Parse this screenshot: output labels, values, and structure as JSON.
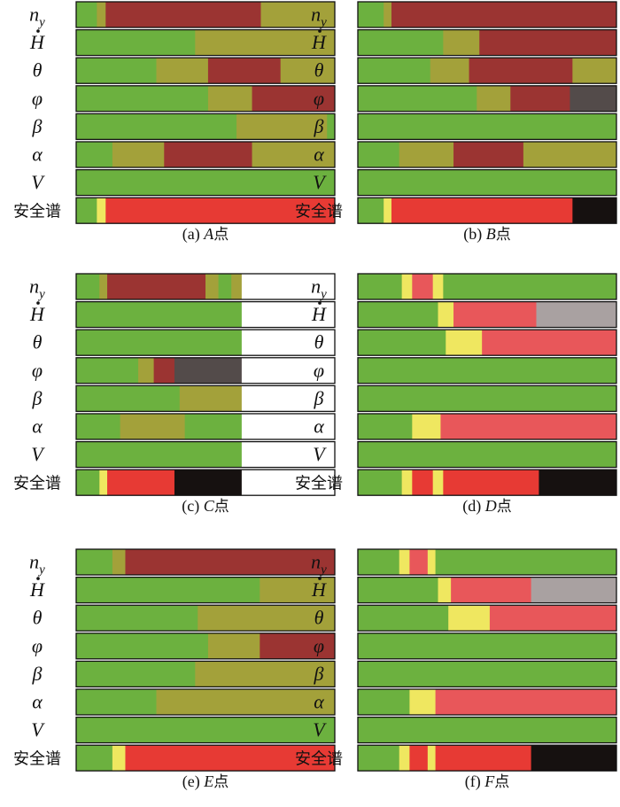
{
  "colors": {
    "G": "#6cb13f",
    "O": "#a3a13a",
    "R": "#9b3432",
    "K": "#534b4a",
    "Y": "#efe760",
    "P": "#e8575a",
    "S": "#a9a1a1",
    "E": "#e73a34",
    "B": "#161110",
    "W": "#ffffff",
    "line": "#111111"
  },
  "chart_data": {
    "type": "stacked-segment-bars",
    "row_labels": [
      {
        "main": "n",
        "sub": "y"
      },
      {
        "main": "H",
        "dot": true
      },
      {
        "main": "θ"
      },
      {
        "main": "φ"
      },
      {
        "main": "β"
      },
      {
        "main": "α"
      },
      {
        "main": "V"
      },
      {
        "main": "安全谱",
        "cn": true
      }
    ],
    "panels": [
      {
        "caption_prefix": "(a)",
        "caption_letter": "A",
        "caption_suffix": "点",
        "rows": [
          [
            [
              "G",
              0.08
            ],
            [
              "O",
              0.034
            ],
            [
              "R",
              0.6
            ],
            [
              "O",
              0.286
            ]
          ],
          [
            [
              "G",
              0.46
            ],
            [
              "O",
              0.54
            ]
          ],
          [
            [
              "G",
              0.31
            ],
            [
              "O",
              0.2
            ],
            [
              "R",
              0.28
            ],
            [
              "O",
              0.21
            ]
          ],
          [
            [
              "G",
              0.51
            ],
            [
              "O",
              0.17
            ],
            [
              "R",
              0.32
            ]
          ],
          [
            [
              "G",
              0.62
            ],
            [
              "O",
              0.35
            ],
            [
              "G",
              0.03
            ]
          ],
          [
            [
              "G",
              0.14
            ],
            [
              "O",
              0.2
            ],
            [
              "R",
              0.34
            ],
            [
              "O",
              0.32
            ]
          ],
          [
            [
              "G",
              1.0
            ]
          ],
          [
            [
              "G",
              0.08
            ],
            [
              "Y",
              0.034
            ],
            [
              "E",
              0.886
            ]
          ]
        ]
      },
      {
        "caption_prefix": "(b)",
        "caption_letter": "B",
        "caption_suffix": "点",
        "rows": [
          [
            [
              "G",
              0.1
            ],
            [
              "O",
              0.03
            ],
            [
              "R",
              0.87
            ]
          ],
          [
            [
              "G",
              0.33
            ],
            [
              "O",
              0.14
            ],
            [
              "R",
              0.53
            ]
          ],
          [
            [
              "G",
              0.28
            ],
            [
              "O",
              0.15
            ],
            [
              "R",
              0.4
            ],
            [
              "O",
              0.17
            ]
          ],
          [
            [
              "G",
              0.46
            ],
            [
              "O",
              0.13
            ],
            [
              "R",
              0.23
            ],
            [
              "K",
              0.18
            ]
          ],
          [
            [
              "G",
              1.0
            ]
          ],
          [
            [
              "G",
              0.16
            ],
            [
              "O",
              0.21
            ],
            [
              "R",
              0.27
            ],
            [
              "O",
              0.36
            ]
          ],
          [
            [
              "G",
              1.0
            ]
          ],
          [
            [
              "G",
              0.1
            ],
            [
              "Y",
              0.03
            ],
            [
              "E",
              0.7
            ],
            [
              "B",
              0.17
            ]
          ]
        ]
      },
      {
        "caption_prefix": "(c)",
        "caption_letter": "C",
        "caption_suffix": "点",
        "rows": [
          [
            [
              "G",
              0.09
            ],
            [
              "O",
              0.03
            ],
            [
              "R",
              0.38
            ],
            [
              "O",
              0.05
            ],
            [
              "G",
              0.05
            ],
            [
              "O",
              0.04
            ],
            [
              "W",
              0.36
            ]
          ],
          [
            [
              "G",
              0.64
            ],
            [
              "W",
              0.36
            ]
          ],
          [
            [
              "G",
              0.64
            ],
            [
              "W",
              0.36
            ]
          ],
          [
            [
              "G",
              0.24
            ],
            [
              "O",
              0.06
            ],
            [
              "R",
              0.08
            ],
            [
              "K",
              0.26
            ],
            [
              "W",
              0.36
            ]
          ],
          [
            [
              "G",
              0.4
            ],
            [
              "O",
              0.24
            ],
            [
              "W",
              0.36
            ]
          ],
          [
            [
              "G",
              0.17
            ],
            [
              "O",
              0.25
            ],
            [
              "G",
              0.22
            ],
            [
              "W",
              0.36
            ]
          ],
          [
            [
              "G",
              0.64
            ],
            [
              "W",
              0.36
            ]
          ],
          [
            [
              "G",
              0.09
            ],
            [
              "Y",
              0.03
            ],
            [
              "E",
              0.26
            ],
            [
              "B",
              0.26
            ],
            [
              "W",
              0.36
            ]
          ]
        ]
      },
      {
        "caption_prefix": "(d)",
        "caption_letter": "D",
        "caption_suffix": "点",
        "rows": [
          [
            [
              "G",
              0.17
            ],
            [
              "Y",
              0.04
            ],
            [
              "P",
              0.08
            ],
            [
              "Y",
              0.04
            ],
            [
              "G",
              0.67
            ]
          ],
          [
            [
              "G",
              0.31
            ],
            [
              "Y",
              0.06
            ],
            [
              "P",
              0.32
            ],
            [
              "S",
              0.31
            ]
          ],
          [
            [
              "G",
              0.34
            ],
            [
              "Y",
              0.14
            ],
            [
              "P",
              0.52
            ]
          ],
          [
            [
              "G",
              1.0
            ]
          ],
          [
            [
              "G",
              1.0
            ]
          ],
          [
            [
              "G",
              0.21
            ],
            [
              "Y",
              0.11
            ],
            [
              "P",
              0.68
            ]
          ],
          [
            [
              "G",
              1.0
            ]
          ],
          [
            [
              "G",
              0.17
            ],
            [
              "Y",
              0.04
            ],
            [
              "E",
              0.08
            ],
            [
              "Y",
              0.04
            ],
            [
              "E",
              0.37
            ],
            [
              "B",
              0.3
            ]
          ]
        ]
      },
      {
        "caption_prefix": "(e)",
        "caption_letter": "E",
        "caption_suffix": "点",
        "rows": [
          [
            [
              "G",
              0.14
            ],
            [
              "O",
              0.05
            ],
            [
              "R",
              0.81
            ]
          ],
          [
            [
              "G",
              0.71
            ],
            [
              "O",
              0.29
            ]
          ],
          [
            [
              "G",
              0.47
            ],
            [
              "O",
              0.53
            ]
          ],
          [
            [
              "G",
              0.51
            ],
            [
              "O",
              0.2
            ],
            [
              "R",
              0.29
            ]
          ],
          [
            [
              "G",
              0.46
            ],
            [
              "O",
              0.54
            ]
          ],
          [
            [
              "G",
              0.31
            ],
            [
              "O",
              0.69
            ]
          ],
          [
            [
              "G",
              1.0
            ]
          ],
          [
            [
              "G",
              0.14
            ],
            [
              "Y",
              0.05
            ],
            [
              "E",
              0.81
            ]
          ]
        ]
      },
      {
        "caption_prefix": "(f)",
        "caption_letter": "F",
        "caption_suffix": "点",
        "rows": [
          [
            [
              "G",
              0.16
            ],
            [
              "Y",
              0.04
            ],
            [
              "P",
              0.07
            ],
            [
              "Y",
              0.03
            ],
            [
              "G",
              0.7
            ]
          ],
          [
            [
              "G",
              0.31
            ],
            [
              "Y",
              0.05
            ],
            [
              "P",
              0.31
            ],
            [
              "S",
              0.33
            ]
          ],
          [
            [
              "G",
              0.35
            ],
            [
              "Y",
              0.16
            ],
            [
              "P",
              0.49
            ]
          ],
          [
            [
              "G",
              1.0
            ]
          ],
          [
            [
              "G",
              1.0
            ]
          ],
          [
            [
              "G",
              0.2
            ],
            [
              "Y",
              0.1
            ],
            [
              "P",
              0.7
            ]
          ],
          [
            [
              "G",
              1.0
            ]
          ],
          [
            [
              "G",
              0.16
            ],
            [
              "Y",
              0.04
            ],
            [
              "E",
              0.07
            ],
            [
              "Y",
              0.03
            ],
            [
              "E",
              0.37
            ],
            [
              "B",
              0.33
            ]
          ]
        ]
      }
    ]
  }
}
